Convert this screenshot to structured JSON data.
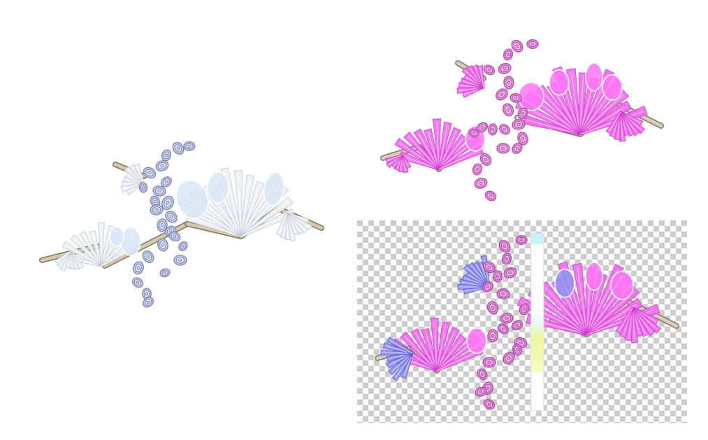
{
  "page": {
    "background": "#ffffff"
  },
  "renders": {
    "neutral": {
      "rod": "#d2c8ad",
      "rod_stroke": "#857858",
      "blade": "#eef0f4",
      "blade_stroke": "#c3c9d4",
      "lens": "#d9e6f7",
      "coil": "#c2cae6",
      "coil_stroke": "#7984b4",
      "coil_inner": "#eceff8"
    },
    "magenta": {
      "rod": "#d8ccbc",
      "rod_stroke": "#86786a",
      "blade": "#f46cf0",
      "blade_stroke": "#cf3bcf",
      "lens": "#ff74f6",
      "coil": "#e691dd",
      "coil_stroke": "#b14aa8",
      "coil_inner": "#f8d0f3"
    },
    "transparent": {
      "rod": "#d8ccbc",
      "rod_stroke": "#86786a",
      "blade": "#f46cf0",
      "blade_stroke": "#cf3bcf",
      "lens": "#ff74f6",
      "coil": "#e28bd8",
      "coil_stroke": "#ad44a4",
      "coil_inner": "#f7cdf1",
      "accent": "#9092f3",
      "accent_stroke": "#5b5fd8",
      "checker_light": "#ffffff",
      "checker_dark": "#cdcdcd",
      "strip": "#ffffff",
      "strip_edge": "#dcdcdc",
      "strip_top": "#c6f3fa",
      "strip_band": "#eef79b"
    }
  }
}
